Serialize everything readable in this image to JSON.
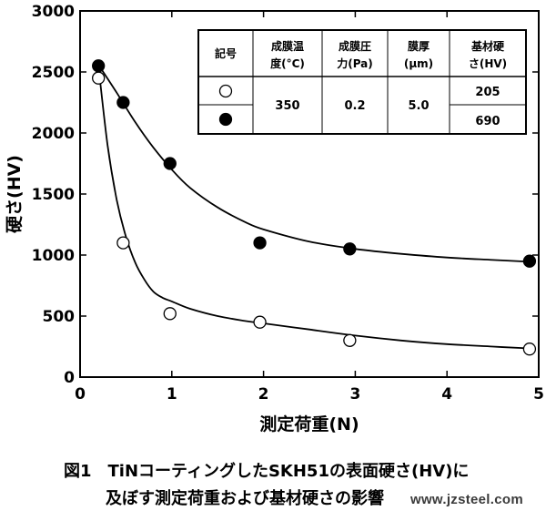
{
  "chart_data": {
    "type": "scatter",
    "xlabel": "測定荷重(N)",
    "ylabel": "硬さ(HV)",
    "xlim": [
      0,
      5
    ],
    "ylim": [
      0,
      3000
    ],
    "xticks": [
      0,
      1,
      2,
      3,
      4,
      5
    ],
    "yticks": [
      0,
      500,
      1000,
      1500,
      2000,
      2500,
      3000
    ],
    "grid": false,
    "series": [
      {
        "marker": "open-circle",
        "x": [
          0.2,
          0.47,
          0.98,
          1.96,
          2.94,
          4.9
        ],
        "y": [
          2450,
          1100,
          520,
          450,
          300,
          230
        ],
        "curve_x": [
          0.2,
          0.3,
          0.4,
          0.5,
          0.6,
          0.7,
          0.8,
          0.9,
          1.0,
          1.2,
          1.5,
          1.8,
          2.0,
          2.5,
          3.0,
          3.5,
          4.0,
          4.5,
          4.9
        ],
        "curve_y": [
          2550,
          1900,
          1450,
          1150,
          940,
          800,
          700,
          650,
          620,
          560,
          500,
          460,
          440,
          390,
          340,
          300,
          270,
          250,
          235
        ]
      },
      {
        "marker": "filled-circle",
        "x": [
          0.2,
          0.47,
          0.98,
          1.96,
          2.94,
          4.9
        ],
        "y": [
          2550,
          2250,
          1750,
          1100,
          1050,
          950
        ],
        "curve_x": [
          0.2,
          0.4,
          0.6,
          0.8,
          1.0,
          1.2,
          1.5,
          1.8,
          2.0,
          2.5,
          3.0,
          3.5,
          4.0,
          4.5,
          4.9
        ],
        "curve_y": [
          2560,
          2330,
          2090,
          1880,
          1700,
          1550,
          1390,
          1270,
          1210,
          1110,
          1050,
          1010,
          980,
          960,
          945
        ]
      }
    ],
    "legend_table": {
      "headers": [
        [
          "記号"
        ],
        [
          "成膜温",
          "度(°C)"
        ],
        [
          "成膜圧",
          "力(Pa)"
        ],
        [
          "膜厚",
          "(μm)"
        ],
        [
          "基材硬",
          "さ(HV)"
        ]
      ],
      "temperature": "350",
      "pressure": "0.2",
      "thickness": "5.0",
      "substrate_hardness": [
        "205",
        "690"
      ]
    }
  },
  "caption": {
    "line1": "図1　TiNコーティングしたSKH51の表面硬さ(HV)に",
    "line2": "及ぼす測定荷重および基材硬さの影響"
  },
  "watermark": "www.jzsteel.com"
}
